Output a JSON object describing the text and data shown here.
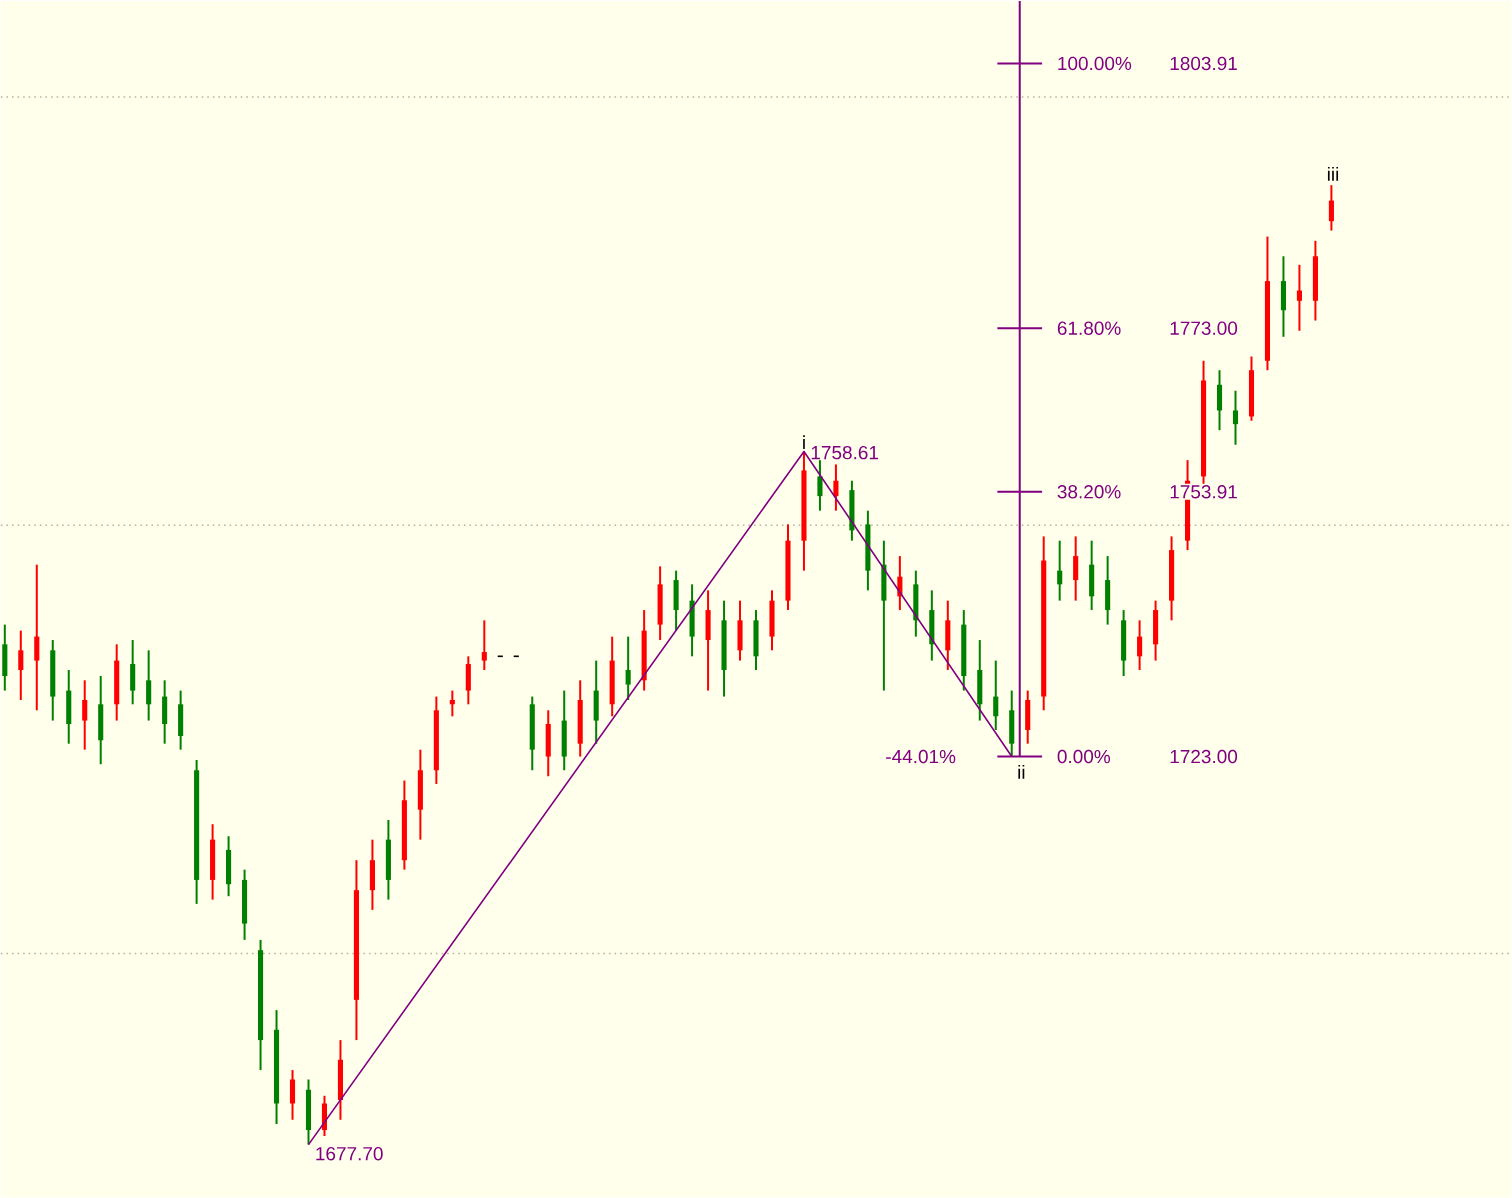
{
  "chart_data": {
    "type": "candlestick",
    "categories": [
      null,
      null,
      null,
      null,
      null,
      null,
      null,
      null,
      null,
      null,
      null,
      null,
      null,
      null,
      null,
      null,
      null,
      null,
      null,
      null,
      null,
      null,
      null,
      null,
      null,
      null,
      null,
      null,
      null,
      null,
      null,
      null,
      null,
      null,
      null,
      null,
      null,
      null,
      null,
      null,
      null,
      null,
      null,
      null,
      null,
      null,
      null,
      null,
      null,
      null,
      null,
      null,
      null,
      null,
      null,
      null,
      null,
      null,
      null,
      null,
      null,
      null,
      null,
      null,
      null,
      null,
      null,
      null,
      null,
      null,
      null,
      null,
      null,
      null,
      null,
      null,
      null,
      null,
      null,
      null,
      null,
      null,
      null,
      null
    ],
    "ohlc": [
      [
        1736.1,
        1738.4,
        1730.7,
        1732.4
      ],
      [
        1733.1,
        1737.7,
        1729.6,
        1735.4
      ],
      [
        1734.2,
        1745.4,
        1728.4,
        1737.0
      ],
      [
        1735.4,
        1736.6,
        1727.2,
        1730.0
      ],
      [
        1730.7,
        1733.1,
        1724.5,
        1726.8
      ],
      [
        1727.2,
        1731.9,
        1723.8,
        1729.6
      ],
      [
        1729.1,
        1732.4,
        1722.1,
        1724.9
      ],
      [
        1729.1,
        1736.1,
        1727.2,
        1734.2
      ],
      [
        1733.8,
        1736.6,
        1729.1,
        1730.7
      ],
      [
        1731.9,
        1735.4,
        1727.2,
        1729.1
      ],
      [
        1730.0,
        1731.9,
        1724.5,
        1726.8
      ],
      [
        1729.1,
        1730.7,
        1723.8,
        1725.4
      ],
      [
        1721.4,
        1722.6,
        1705.8,
        1708.6
      ],
      [
        1708.6,
        1715.1,
        1706.3,
        1713.3
      ],
      [
        1712.1,
        1713.7,
        1706.7,
        1708.1
      ],
      [
        1708.6,
        1709.8,
        1701.6,
        1703.5
      ],
      [
        1700.4,
        1701.6,
        1686.4,
        1689.9
      ],
      [
        1691.1,
        1693.4,
        1680.1,
        1682.5
      ],
      [
        1682.5,
        1686.4,
        1680.6,
        1685.3
      ],
      [
        1684.1,
        1685.3,
        1677.7,
        1679.4
      ],
      [
        1679.4,
        1683.4,
        1678.7,
        1682.5
      ],
      [
        1682.9,
        1689.9,
        1680.6,
        1687.6
      ],
      [
        1694.6,
        1710.9,
        1689.9,
        1707.4
      ],
      [
        1707.4,
        1713.3,
        1705.1,
        1710.9
      ],
      [
        1713.3,
        1715.6,
        1706.3,
        1708.6
      ],
      [
        1710.9,
        1720.2,
        1709.8,
        1717.9
      ],
      [
        1716.8,
        1723.8,
        1713.3,
        1721.4
      ],
      [
        1721.4,
        1730.0,
        1719.8,
        1728.4
      ],
      [
        1729.1,
        1730.7,
        1727.7,
        1729.6
      ],
      [
        1730.7,
        1734.7,
        1729.1,
        1733.8
      ],
      [
        1734.2,
        1738.9,
        1733.1,
        1735.2
      ],
      [
        1734.7,
        1734.7,
        1734.7,
        1734.7
      ],
      [
        1734.7,
        1734.7,
        1734.7,
        1734.7
      ],
      [
        1729.1,
        1730.0,
        1721.4,
        1723.8
      ],
      [
        1723.0,
        1728.4,
        1720.7,
        1726.8
      ],
      [
        1727.2,
        1730.7,
        1721.4,
        1723.0
      ],
      [
        1724.5,
        1731.9,
        1723.0,
        1729.6
      ],
      [
        1730.7,
        1734.2,
        1724.5,
        1727.2
      ],
      [
        1729.1,
        1737.0,
        1727.7,
        1734.2
      ],
      [
        1733.1,
        1737.0,
        1729.6,
        1731.4
      ],
      [
        1731.9,
        1740.1,
        1730.7,
        1737.7
      ],
      [
        1738.4,
        1745.2,
        1736.6,
        1743.1
      ],
      [
        1743.6,
        1744.7,
        1737.7,
        1740.1
      ],
      [
        1741.2,
        1743.1,
        1734.7,
        1737.0
      ],
      [
        1736.6,
        1742.4,
        1730.7,
        1740.1
      ],
      [
        1738.9,
        1741.2,
        1730.0,
        1733.1
      ],
      [
        1735.4,
        1741.2,
        1734.2,
        1738.9
      ],
      [
        1738.9,
        1740.1,
        1733.1,
        1734.7
      ],
      [
        1737.0,
        1742.4,
        1735.4,
        1741.2
      ],
      [
        1741.2,
        1750.1,
        1740.1,
        1748.2
      ],
      [
        1748.2,
        1758.61,
        1744.7,
        1756.4
      ],
      [
        1755.7,
        1757.6,
        1751.7,
        1753.4
      ],
      [
        1753.4,
        1757.1,
        1751.7,
        1755.2
      ],
      [
        1754.1,
        1755.2,
        1748.2,
        1749.4
      ],
      [
        1750.1,
        1751.7,
        1742.4,
        1744.7
      ],
      [
        1745.4,
        1748.2,
        1730.7,
        1741.2
      ],
      [
        1741.7,
        1746.4,
        1740.1,
        1744.0
      ],
      [
        1743.1,
        1744.7,
        1737.0,
        1738.9
      ],
      [
        1740.1,
        1742.4,
        1734.2,
        1736.1
      ],
      [
        1735.4,
        1741.2,
        1733.1,
        1738.9
      ],
      [
        1738.4,
        1740.1,
        1730.7,
        1732.4
      ],
      [
        1733.1,
        1736.6,
        1727.2,
        1729.1
      ],
      [
        1730.0,
        1734.2,
        1726.1,
        1727.7
      ],
      [
        1728.4,
        1730.7,
        1723.0,
        1724.5
      ],
      [
        1726.1,
        1730.7,
        1724.5,
        1729.6
      ],
      [
        1730.0,
        1748.7,
        1728.4,
        1745.9
      ],
      [
        1744.7,
        1748.2,
        1741.2,
        1743.1
      ],
      [
        1743.6,
        1748.7,
        1741.2,
        1746.4
      ],
      [
        1745.4,
        1748.2,
        1740.1,
        1741.7
      ],
      [
        1743.6,
        1746.4,
        1738.4,
        1740.1
      ],
      [
        1738.9,
        1740.1,
        1732.4,
        1734.2
      ],
      [
        1734.7,
        1738.9,
        1733.1,
        1737.0
      ],
      [
        1736.1,
        1741.2,
        1734.2,
        1740.1
      ],
      [
        1741.2,
        1748.7,
        1738.9,
        1747.1
      ],
      [
        1748.2,
        1757.6,
        1747.1,
        1755.2
      ],
      [
        1755.7,
        1769.2,
        1754.1,
        1766.9
      ],
      [
        1766.4,
        1768.1,
        1761.1,
        1763.4
      ],
      [
        1763.4,
        1765.7,
        1759.4,
        1761.8
      ],
      [
        1762.7,
        1769.7,
        1762.2,
        1768.1
      ],
      [
        1769.2,
        1783.7,
        1768.1,
        1778.5
      ],
      [
        1778.5,
        1781.4,
        1772.0,
        1775.1
      ],
      [
        1776.2,
        1780.4,
        1772.7,
        1777.4
      ],
      [
        1776.2,
        1783.2,
        1773.9,
        1781.4
      ],
      [
        1785.5,
        1789.7,
        1784.4,
        1787.9
      ]
    ],
    "colors": [
      "#008000",
      "#ff0000",
      "#ff0000",
      "#008000",
      "#008000",
      "#ff0000",
      "#008000",
      "#ff0000",
      "#008000",
      "#008000",
      "#008000",
      "#008000",
      "#008000",
      "#ff0000",
      "#008000",
      "#008000",
      "#008000",
      "#008000",
      "#ff0000",
      "#008000",
      "#ff0000",
      "#ff0000",
      "#ff0000",
      "#ff0000",
      "#008000",
      "#ff0000",
      "#ff0000",
      "#ff0000",
      "#ff0000",
      "#ff0000",
      "#ff0000",
      "#000000",
      "#000000",
      "#008000",
      "#ff0000",
      "#008000",
      "#ff0000",
      "#008000",
      "#ff0000",
      "#008000",
      "#ff0000",
      "#ff0000",
      "#008000",
      "#008000",
      "#ff0000",
      "#008000",
      "#ff0000",
      "#008000",
      "#ff0000",
      "#ff0000",
      "#ff0000",
      "#008000",
      "#ff0000",
      "#008000",
      "#008000",
      "#008000",
      "#ff0000",
      "#008000",
      "#008000",
      "#ff0000",
      "#008000",
      "#008000",
      "#008000",
      "#008000",
      "#ff0000",
      "#ff0000",
      "#008000",
      "#ff0000",
      "#008000",
      "#008000",
      "#008000",
      "#ff0000",
      "#ff0000",
      "#ff0000",
      "#ff0000",
      "#ff0000",
      "#008000",
      "#008000",
      "#ff0000",
      "#ff0000",
      "#008000",
      "#ff0000",
      "#ff0000",
      "#ff0000"
    ],
    "series": [
      {
        "type": "line",
        "color": "#800080",
        "values": [
          null,
          null,
          null,
          null,
          null,
          null,
          null,
          null,
          null,
          null,
          null,
          null,
          null,
          null,
          null,
          null,
          null,
          null,
          null,
          1677.7,
          null,
          null,
          null,
          null,
          null,
          null,
          null,
          null,
          null,
          null,
          null,
          null,
          null,
          null,
          null,
          null,
          null,
          null,
          null,
          null,
          null,
          null,
          null,
          null,
          null,
          null,
          null,
          null,
          null,
          null,
          1758.61,
          null,
          null,
          null,
          null,
          null,
          null,
          null,
          null,
          null,
          null,
          null,
          null,
          1723.0,
          null,
          null,
          null,
          null,
          null,
          null,
          null,
          null,
          null,
          null,
          null,
          null,
          null,
          null,
          null,
          null,
          null,
          null,
          null,
          null
        ],
        "value_labels": [
          null,
          null,
          null,
          null,
          null,
          null,
          null,
          null,
          null,
          null,
          null,
          null,
          null,
          null,
          null,
          null,
          null,
          null,
          null,
          "1677.70",
          null,
          null,
          null,
          null,
          null,
          null,
          null,
          null,
          null,
          null,
          null,
          null,
          null,
          null,
          null,
          null,
          null,
          null,
          null,
          null,
          null,
          null,
          null,
          null,
          null,
          null,
          null,
          null,
          null,
          null,
          "1758.61",
          null,
          null,
          null,
          null,
          null,
          null,
          null,
          null,
          null,
          null,
          null,
          null,
          null,
          null,
          null,
          null,
          null,
          null,
          null,
          null,
          null,
          null,
          null,
          null,
          null,
          null,
          null,
          null,
          null,
          null,
          null,
          null,
          null
        ]
      }
    ],
    "ylim": [
      1671.5,
      1811.2
    ],
    "yticks": [
      {
        "value": 1723.0,
        "label": "1723.00"
      },
      {
        "value": 1753.91,
        "label": "1753.91"
      },
      {
        "value": 1773.0,
        "label": "1773.00"
      },
      {
        "value": 1803.91,
        "label": "1803.91"
      }
    ],
    "tick_labels": "y",
    "ref_lines": [
      {
        "axis": "y",
        "value": 1700,
        "color": "#b4b4aa",
        "line_style": "dotted"
      },
      {
        "axis": "y",
        "value": 1750,
        "color": "#b4b4aa",
        "line_style": "dotted"
      },
      {
        "axis": "y",
        "value": 1800,
        "color": "#b4b4aa",
        "line_style": "dotted"
      }
    ],
    "annotations": [
      "100.00%",
      "61.80%",
      "38.20%",
      "0.00%",
      "-44.01%",
      "i",
      "ii",
      "iii"
    ]
  }
}
